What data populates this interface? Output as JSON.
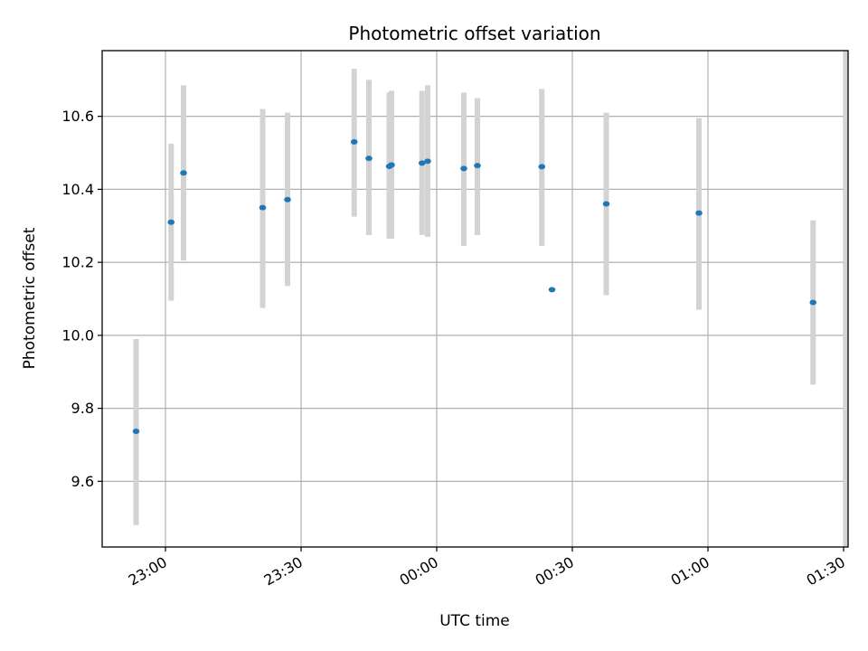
{
  "chart_data": {
    "type": "scatter",
    "title": "Photometric offset variation",
    "xlabel": "UTC time",
    "ylabel": "Photometric offset",
    "x_unit": "UTC time (HH:MM), times after midnight fall on the following day",
    "xlim": [
      "22:46",
      "01:31"
    ],
    "ylim": [
      9.42,
      10.78
    ],
    "grid": true,
    "x_tick_labels": [
      "23:00",
      "23:30",
      "00:00",
      "00:30",
      "01:00",
      "01:30"
    ],
    "y_tick_labels": [
      "9.6",
      "9.8",
      "10.0",
      "10.2",
      "10.4",
      "10.6"
    ],
    "y_ticks": [
      9.6,
      9.8,
      10.0,
      10.2,
      10.4,
      10.6
    ],
    "colors": {
      "point": "#1f77b4",
      "errorbar": "#d3d3d3",
      "grid": "#b0b0b0",
      "axis": "#000000"
    },
    "points": [
      {
        "t": "22:53:30",
        "y": 9.737,
        "ylow": 9.48,
        "yhigh": 9.99
      },
      {
        "t": "23:01:15",
        "y": 10.31,
        "ylow": 10.095,
        "yhigh": 10.525
      },
      {
        "t": "23:04:00",
        "y": 10.445,
        "ylow": 10.205,
        "yhigh": 10.685
      },
      {
        "t": "23:21:30",
        "y": 10.35,
        "ylow": 10.075,
        "yhigh": 10.62
      },
      {
        "t": "23:27:00",
        "y": 10.372,
        "ylow": 10.135,
        "yhigh": 10.61
      },
      {
        "t": "23:41:45",
        "y": 10.53,
        "ylow": 10.325,
        "yhigh": 10.73
      },
      {
        "t": "23:45:00",
        "y": 10.485,
        "ylow": 10.275,
        "yhigh": 10.7
      },
      {
        "t": "23:49:30",
        "y": 10.463,
        "ylow": 10.265,
        "yhigh": 10.665
      },
      {
        "t": "23:50:00",
        "y": 10.467,
        "ylow": 10.265,
        "yhigh": 10.67
      },
      {
        "t": "23:56:45",
        "y": 10.472,
        "ylow": 10.275,
        "yhigh": 10.67
      },
      {
        "t": "23:58:00",
        "y": 10.477,
        "ylow": 10.27,
        "yhigh": 10.685
      },
      {
        "t": "00:06:00",
        "y": 10.457,
        "ylow": 10.245,
        "yhigh": 10.665
      },
      {
        "t": "00:09:00",
        "y": 10.465,
        "ylow": 10.275,
        "yhigh": 10.65
      },
      {
        "t": "00:23:15",
        "y": 10.462,
        "ylow": 10.245,
        "yhigh": 10.675
      },
      {
        "t": "00:25:30",
        "y": 10.125,
        "ylow": null,
        "yhigh": null
      },
      {
        "t": "00:37:30",
        "y": 10.36,
        "ylow": 10.11,
        "yhigh": 10.61
      },
      {
        "t": "00:58:00",
        "y": 10.335,
        "ylow": 10.07,
        "yhigh": 10.595
      },
      {
        "t": "01:23:15",
        "y": 10.09,
        "ylow": 9.865,
        "yhigh": 10.315
      },
      {
        "t": "01:30:30",
        "y": null,
        "ylow": 9.42,
        "yhigh": 10.78
      }
    ]
  }
}
